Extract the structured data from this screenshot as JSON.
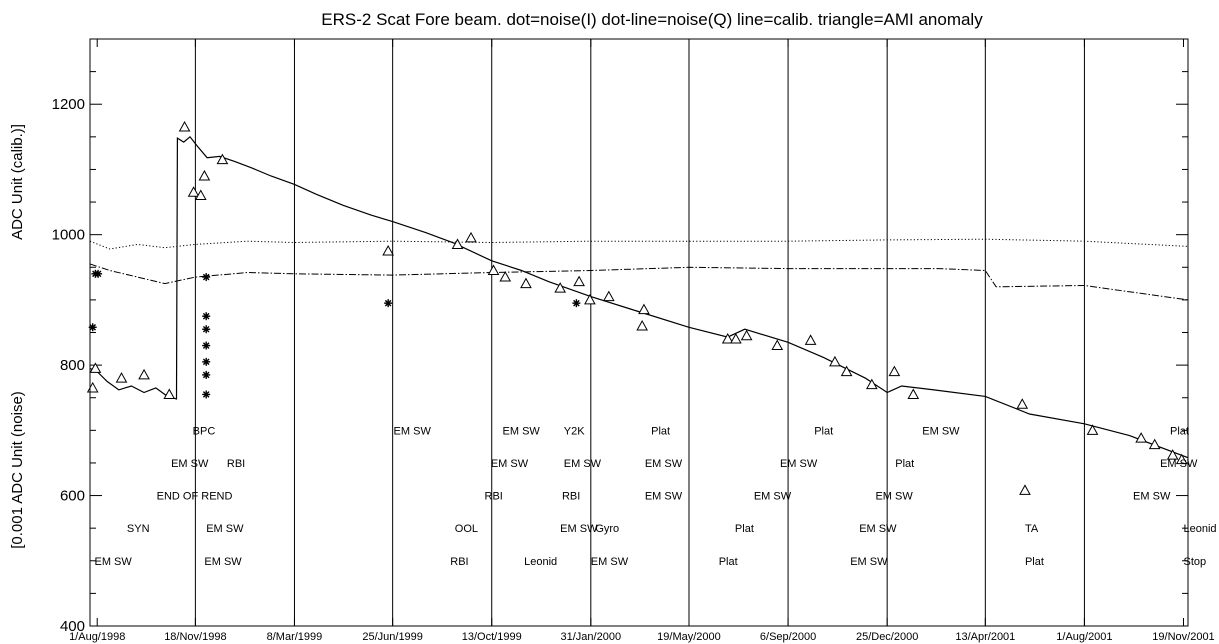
{
  "chart_data": {
    "type": "line",
    "title": "ERS-2 Scat Fore beam. dot=noise(I) dot-line=noise(Q) line=calib. triangle=AMI anomaly",
    "ylabel_left": "ADC Unit (calib.)]",
    "ylabel_right": "[0.001 ADC Unit (noise)",
    "ylim": [
      400,
      1300
    ],
    "xlim": [
      "1998-07-24",
      "2001-11-24"
    ],
    "y_ticks": [
      400,
      600,
      800,
      1000,
      1200
    ],
    "x_ticks": [
      {
        "label": "1/Aug/1998",
        "date": "1998-08-01"
      },
      {
        "label": "18/Nov/1998",
        "date": "1998-11-18"
      },
      {
        "label": "8/Mar/1999",
        "date": "1999-03-08"
      },
      {
        "label": "25/Jun/1999",
        "date": "1999-06-25"
      },
      {
        "label": "13/Oct/1999",
        "date": "1999-10-13"
      },
      {
        "label": "31/Jan/2000",
        "date": "2000-01-31"
      },
      {
        "label": "19/May/2000",
        "date": "2000-05-19"
      },
      {
        "label": "6/Sep/2000",
        "date": "2000-09-06"
      },
      {
        "label": "25/Dec/2000",
        "date": "2000-12-25"
      },
      {
        "label": "13/Apr/2001",
        "date": "2001-04-13"
      },
      {
        "label": "1/Aug/2001",
        "date": "2001-08-01"
      },
      {
        "label": "19/Nov/2001",
        "date": "2001-11-19"
      }
    ],
    "vertical_lines": [
      "1998-11-18",
      "1999-03-08",
      "1999-06-25",
      "1999-10-13",
      "2000-01-31",
      "2000-05-19",
      "2000-09-06",
      "2000-12-25",
      "2001-04-13",
      "2001-08-01"
    ],
    "series": [
      {
        "style": "line",
        "points": [
          [
            "1998-07-24",
            795
          ],
          [
            "1998-08-01",
            790
          ],
          [
            "1998-08-12",
            775
          ],
          [
            "1998-08-25",
            762
          ],
          [
            "1998-09-08",
            768
          ],
          [
            "1998-09-22",
            758
          ],
          [
            "1998-10-05",
            765
          ],
          [
            "1998-10-18",
            752
          ],
          [
            "1998-10-28",
            748
          ],
          [
            "1998-10-29",
            1148
          ],
          [
            "1998-11-05",
            1142
          ],
          [
            "1998-11-12",
            1150
          ],
          [
            "1998-11-20",
            1136
          ],
          [
            "1998-12-01",
            1118
          ],
          [
            "1998-12-15",
            1120
          ],
          [
            "1999-01-01",
            1112
          ],
          [
            "1999-01-20",
            1102
          ],
          [
            "1999-02-10",
            1090
          ],
          [
            "1999-03-08",
            1077
          ],
          [
            "1999-04-01",
            1062
          ],
          [
            "1999-05-01",
            1045
          ],
          [
            "1999-06-01",
            1030
          ],
          [
            "1999-06-25",
            1020
          ],
          [
            "1999-08-01",
            1003
          ],
          [
            "1999-09-01",
            987
          ],
          [
            "1999-10-13",
            960
          ],
          [
            "1999-11-15",
            945
          ],
          [
            "1999-12-15",
            928
          ],
          [
            "2000-01-31",
            905
          ],
          [
            "2000-03-15",
            886
          ],
          [
            "2000-05-19",
            858
          ],
          [
            "2000-07-01",
            843
          ],
          [
            "2000-07-20",
            855
          ],
          [
            "2000-09-06",
            835
          ],
          [
            "2000-10-15",
            812
          ],
          [
            "2000-12-01",
            780
          ],
          [
            "2000-12-25",
            758
          ],
          [
            "2001-01-10",
            768
          ],
          [
            "2001-02-15",
            762
          ],
          [
            "2001-04-13",
            752
          ],
          [
            "2001-06-01",
            725
          ],
          [
            "2001-08-01",
            710
          ],
          [
            "2001-09-20",
            692
          ],
          [
            "2001-11-24",
            658
          ]
        ]
      },
      {
        "style": "dot",
        "points": [
          [
            "1998-07-24",
            990
          ],
          [
            "1998-08-15",
            978
          ],
          [
            "1998-09-15",
            985
          ],
          [
            "1998-10-15",
            980
          ],
          [
            "1998-11-18",
            985
          ],
          [
            "1999-01-15",
            990
          ],
          [
            "1999-03-08",
            988
          ],
          [
            "1999-06-25",
            990
          ],
          [
            "1999-10-13",
            988
          ],
          [
            "2000-01-31",
            990
          ],
          [
            "2000-05-19",
            990
          ],
          [
            "2000-09-06",
            990
          ],
          [
            "2000-12-25",
            992
          ],
          [
            "2001-04-13",
            993
          ],
          [
            "2001-08-01",
            990
          ],
          [
            "2001-11-24",
            982
          ]
        ]
      },
      {
        "style": "dot-line",
        "points": [
          [
            "1998-07-24",
            955
          ],
          [
            "1998-08-15",
            945
          ],
          [
            "1998-09-15",
            935
          ],
          [
            "1998-10-15",
            925
          ],
          [
            "1998-11-18",
            935
          ],
          [
            "1999-01-15",
            942
          ],
          [
            "1999-03-08",
            940
          ],
          [
            "1999-06-25",
            938
          ],
          [
            "1999-10-13",
            942
          ],
          [
            "2000-01-31",
            945
          ],
          [
            "2000-05-19",
            950
          ],
          [
            "2000-09-06",
            948
          ],
          [
            "2000-12-25",
            948
          ],
          [
            "2001-02-20",
            948
          ],
          [
            "2001-04-13",
            945
          ],
          [
            "2001-04-25",
            920
          ],
          [
            "2001-08-01",
            922
          ],
          [
            "2001-11-24",
            900
          ]
        ]
      }
    ],
    "triangles": [
      [
        "1998-07-27",
        765
      ],
      [
        "1998-07-30",
        795
      ],
      [
        "1998-08-28",
        780
      ],
      [
        "1998-09-22",
        785
      ],
      [
        "1998-10-20",
        755
      ],
      [
        "1998-11-06",
        1165
      ],
      [
        "1998-11-16",
        1065
      ],
      [
        "1998-11-24",
        1060
      ],
      [
        "1998-11-28",
        1090
      ],
      [
        "1998-12-18",
        1115
      ],
      [
        "1999-06-20",
        975
      ],
      [
        "1999-09-05",
        985
      ],
      [
        "1999-09-20",
        995
      ],
      [
        "1999-10-15",
        945
      ],
      [
        "1999-10-28",
        935
      ],
      [
        "1999-11-20",
        925
      ],
      [
        "1999-12-28",
        918
      ],
      [
        "2000-01-18",
        928
      ],
      [
        "2000-01-30",
        900
      ],
      [
        "2000-02-20",
        905
      ],
      [
        "2000-03-28",
        860
      ],
      [
        "2000-03-30",
        885
      ],
      [
        "2000-07-01",
        840
      ],
      [
        "2000-07-10",
        840
      ],
      [
        "2000-07-22",
        845
      ],
      [
        "2000-08-25",
        830
      ],
      [
        "2000-10-01",
        838
      ],
      [
        "2000-10-28",
        805
      ],
      [
        "2000-11-10",
        790
      ],
      [
        "2000-12-08",
        770
      ],
      [
        "2001-01-02",
        790
      ],
      [
        "2001-01-23",
        755
      ],
      [
        "2001-05-24",
        740
      ],
      [
        "2001-05-27",
        608
      ],
      [
        "2001-08-10",
        700
      ],
      [
        "2001-10-03",
        688
      ],
      [
        "2001-10-18",
        678
      ],
      [
        "2001-11-07",
        662
      ],
      [
        "2001-11-17",
        655
      ]
    ],
    "asterisks": [
      [
        "1998-07-27",
        858
      ],
      [
        "1998-07-30",
        940
      ],
      [
        "1998-08-02",
        940
      ],
      [
        "1998-11-30",
        935
      ],
      [
        "1998-11-30",
        875
      ],
      [
        "1998-11-30",
        855
      ],
      [
        "1998-11-30",
        830
      ],
      [
        "1998-11-30",
        805
      ],
      [
        "1998-11-30",
        785
      ],
      [
        "1998-11-30",
        755
      ],
      [
        "1999-06-20",
        895
      ],
      [
        "2000-01-15",
        895
      ]
    ],
    "annotations": [
      {
        "text": "EM SW",
        "date": "1998-07-29",
        "y": 500
      },
      {
        "text": "SYN",
        "date": "1998-09-03",
        "y": 550
      },
      {
        "text": "END OF REND",
        "date": "1998-10-06",
        "y": 600
      },
      {
        "text": "EM SW",
        "date": "1998-10-22",
        "y": 650
      },
      {
        "text": "BPC",
        "date": "1998-11-15",
        "y": 700
      },
      {
        "text": "RBI",
        "date": "1998-12-23",
        "y": 650
      },
      {
        "text": "EM SW",
        "date": "1998-11-30",
        "y": 550
      },
      {
        "text": "EM SW",
        "date": "1998-11-28",
        "y": 500
      },
      {
        "text": "EM SW",
        "date": "1999-06-26",
        "y": 700
      },
      {
        "text": "RBI",
        "date": "1999-08-28",
        "y": 500
      },
      {
        "text": "OOL",
        "date": "1999-09-02",
        "y": 550
      },
      {
        "text": "RBI",
        "date": "1999-10-05",
        "y": 600
      },
      {
        "text": "EM SW",
        "date": "1999-10-12",
        "y": 650
      },
      {
        "text": "EM SW",
        "date": "1999-10-25",
        "y": 700
      },
      {
        "text": "Leonid",
        "date": "1999-11-18",
        "y": 500
      },
      {
        "text": "RBI",
        "date": "1999-12-30",
        "y": 600
      },
      {
        "text": "EM SW",
        "date": "1999-12-28",
        "y": 550
      },
      {
        "text": "Y2K",
        "date": "2000-01-01",
        "y": 700
      },
      {
        "text": "EM SW",
        "date": "2000-01-01",
        "y": 650
      },
      {
        "text": "Gyro",
        "date": "2000-02-05",
        "y": 550
      },
      {
        "text": "EM SW",
        "date": "2000-01-31",
        "y": 500
      },
      {
        "text": "Plat",
        "date": "2000-04-07",
        "y": 700
      },
      {
        "text": "EM SW",
        "date": "2000-03-31",
        "y": 650
      },
      {
        "text": "EM SW",
        "date": "2000-03-31",
        "y": 600
      },
      {
        "text": "Plat",
        "date": "2000-06-21",
        "y": 500
      },
      {
        "text": "Plat",
        "date": "2000-07-09",
        "y": 550
      },
      {
        "text": "EM SW",
        "date": "2000-07-30",
        "y": 600
      },
      {
        "text": "EM SW",
        "date": "2000-08-28",
        "y": 650
      },
      {
        "text": "Plat",
        "date": "2000-10-05",
        "y": 700
      },
      {
        "text": "EM SW",
        "date": "2000-11-14",
        "y": 500
      },
      {
        "text": "EM SW",
        "date": "2000-11-24",
        "y": 550
      },
      {
        "text": "EM SW",
        "date": "2000-12-12",
        "y": 600
      },
      {
        "text": "Plat",
        "date": "2001-01-03",
        "y": 650
      },
      {
        "text": "EM SW",
        "date": "2001-02-02",
        "y": 700
      },
      {
        "text": "TA",
        "date": "2001-05-27",
        "y": 550
      },
      {
        "text": "Plat",
        "date": "2001-05-27",
        "y": 500
      },
      {
        "text": "EM SW",
        "date": "2001-09-24",
        "y": 600
      },
      {
        "text": "EM SW",
        "date": "2001-10-24",
        "y": 650
      },
      {
        "text": "Plat",
        "date": "2001-11-04",
        "y": 700
      },
      {
        "text": "Leonid",
        "date": "2001-11-19",
        "y": 550
      },
      {
        "text": "Stop",
        "date": "2001-11-19",
        "y": 500
      }
    ]
  }
}
